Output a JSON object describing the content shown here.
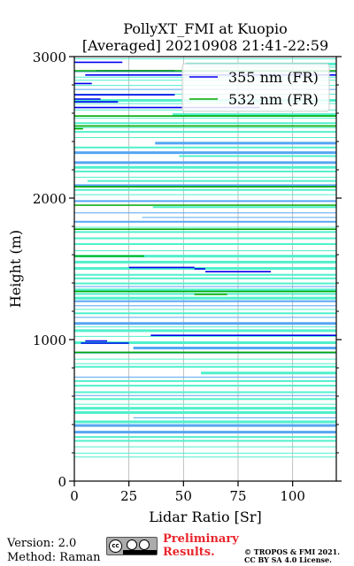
{
  "chart_data": {
    "type": "line",
    "title": "PollyXT_FMI at Kuopio",
    "subtitle": "[Averaged] 20210908 21:41-22:59",
    "xlabel": "Lidar Ratio [Sr]",
    "ylabel": "Height (m)",
    "xlim": [
      0,
      120
    ],
    "ylim": [
      0,
      3000
    ],
    "x_ticks": [
      0,
      25,
      50,
      75,
      100
    ],
    "y_ticks": [
      0,
      1000,
      2000,
      3000
    ],
    "grid": "vertical",
    "legend_position": "top-right",
    "colors": {
      "s355": "#0000ee",
      "s355_light": "#55a6f2",
      "s532": "#00aa00",
      "s532_light": "#4ff0cc"
    },
    "series": [
      {
        "name": "355 nm (FR)",
        "color": "#0000ee",
        "segments": [
          {
            "y": 975,
            "x": [
              3,
              25
            ]
          },
          {
            "y": 990,
            "x": [
              5,
              15
            ]
          },
          {
            "y": 1030,
            "x": [
              35,
              120
            ]
          },
          {
            "y": 1480,
            "x": [
              60,
              90
            ]
          },
          {
            "y": 1500,
            "x": [
              55,
              60
            ]
          },
          {
            "y": 1510,
            "x": [
              25,
              55
            ]
          },
          {
            "y": 2640,
            "x": [
              0,
              85
            ]
          },
          {
            "y": 2680,
            "x": [
              0,
              20
            ]
          },
          {
            "y": 2700,
            "x": [
              0,
              12
            ]
          },
          {
            "y": 2730,
            "x": [
              0,
              46
            ]
          },
          {
            "y": 2810,
            "x": [
              0,
              8
            ]
          },
          {
            "y": 2870,
            "x": [
              5,
              120
            ]
          },
          {
            "y": 2900,
            "x": [
              10,
              46
            ]
          },
          {
            "y": 2960,
            "x": [
              0,
              22
            ]
          }
        ]
      },
      {
        "name": "532 nm (FR)",
        "color": "#00aa00",
        "segments": [
          {
            "y": 910,
            "x": [
              0,
              120
            ]
          },
          {
            "y": 1320,
            "x": [
              55,
              70
            ]
          },
          {
            "y": 1340,
            "x": [
              0,
              120
            ]
          },
          {
            "y": 1590,
            "x": [
              0,
              32
            ]
          },
          {
            "y": 1780,
            "x": [
              0,
              120
            ]
          },
          {
            "y": 1950,
            "x": [
              0,
              120
            ]
          },
          {
            "y": 2080,
            "x": [
              0,
              120
            ]
          },
          {
            "y": 2490,
            "x": [
              0,
              4
            ]
          },
          {
            "y": 2510,
            "x": [
              0,
              120
            ]
          },
          {
            "y": 2580,
            "x": [
              0,
              120
            ]
          },
          {
            "y": 2900,
            "x": [
              0,
              120
            ]
          }
        ]
      }
    ]
  },
  "footer": {
    "version": "Version: 2.0",
    "method": "Method: Raman",
    "preliminary_line1": "Preliminary",
    "preliminary_line2": "Results.",
    "copyright_line1": "© TROPOS & FMI 2021.",
    "copyright_line2": "CC BY SA 4.0 License."
  }
}
